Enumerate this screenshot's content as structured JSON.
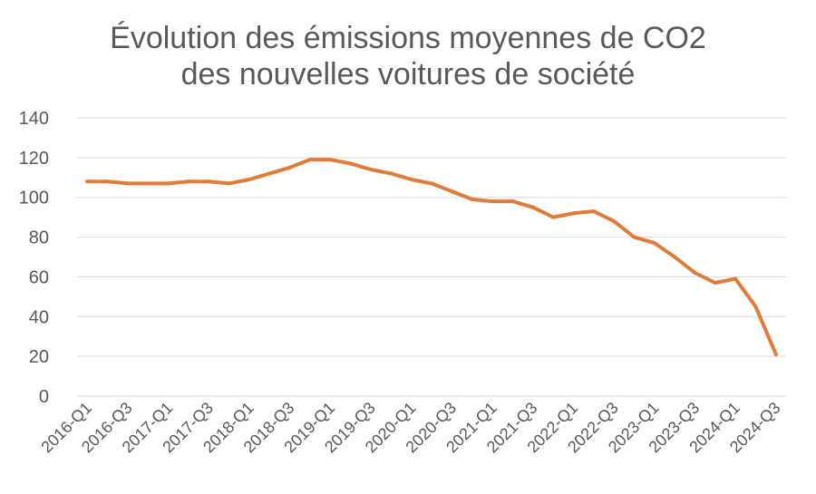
{
  "chart_data": {
    "type": "line",
    "title_line1": "Évolution des émissions moyennes de CO2",
    "title_line2": "des nouvelles voitures de société",
    "xlabel": "",
    "ylabel": "",
    "ylim": [
      0,
      140
    ],
    "yticks": [
      0,
      20,
      40,
      60,
      80,
      100,
      120,
      140
    ],
    "grid": true,
    "legend": "none",
    "x_tick_labels": [
      "2016-Q1",
      "2016-Q3",
      "2017-Q1",
      "2017-Q3",
      "2018-Q1",
      "2018-Q3",
      "2019-Q1",
      "2019-Q3",
      "2020-Q1",
      "2020-Q3",
      "2021-Q1",
      "2021-Q3",
      "2022-Q1",
      "2022-Q3",
      "2023-Q1",
      "2023-Q3",
      "2024-Q1",
      "2024-Q3"
    ],
    "categories": [
      "2016-Q1",
      "2016-Q2",
      "2016-Q3",
      "2016-Q4",
      "2017-Q1",
      "2017-Q2",
      "2017-Q3",
      "2017-Q4",
      "2018-Q1",
      "2018-Q2",
      "2018-Q3",
      "2018-Q4",
      "2019-Q1",
      "2019-Q2",
      "2019-Q3",
      "2019-Q4",
      "2020-Q1",
      "2020-Q2",
      "2020-Q3",
      "2020-Q4",
      "2021-Q1",
      "2021-Q2",
      "2021-Q3",
      "2021-Q4",
      "2022-Q1",
      "2022-Q2",
      "2022-Q3",
      "2022-Q4",
      "2023-Q1",
      "2023-Q2",
      "2023-Q3",
      "2023-Q4",
      "2024-Q1",
      "2024-Q2",
      "2024-Q3"
    ],
    "series": [
      {
        "color": "#E07B39",
        "values": [
          108,
          108,
          107,
          107,
          107,
          108,
          108,
          107,
          109,
          112,
          115,
          119,
          119,
          117,
          114,
          112,
          109,
          107,
          103,
          99,
          98,
          98,
          95,
          90,
          92,
          93,
          88,
          80,
          77,
          70,
          62,
          57,
          59,
          45,
          21
        ]
      }
    ],
    "colors": {
      "line": "#E07B39",
      "grid": "#D9D9D9",
      "text": "#595959"
    }
  }
}
